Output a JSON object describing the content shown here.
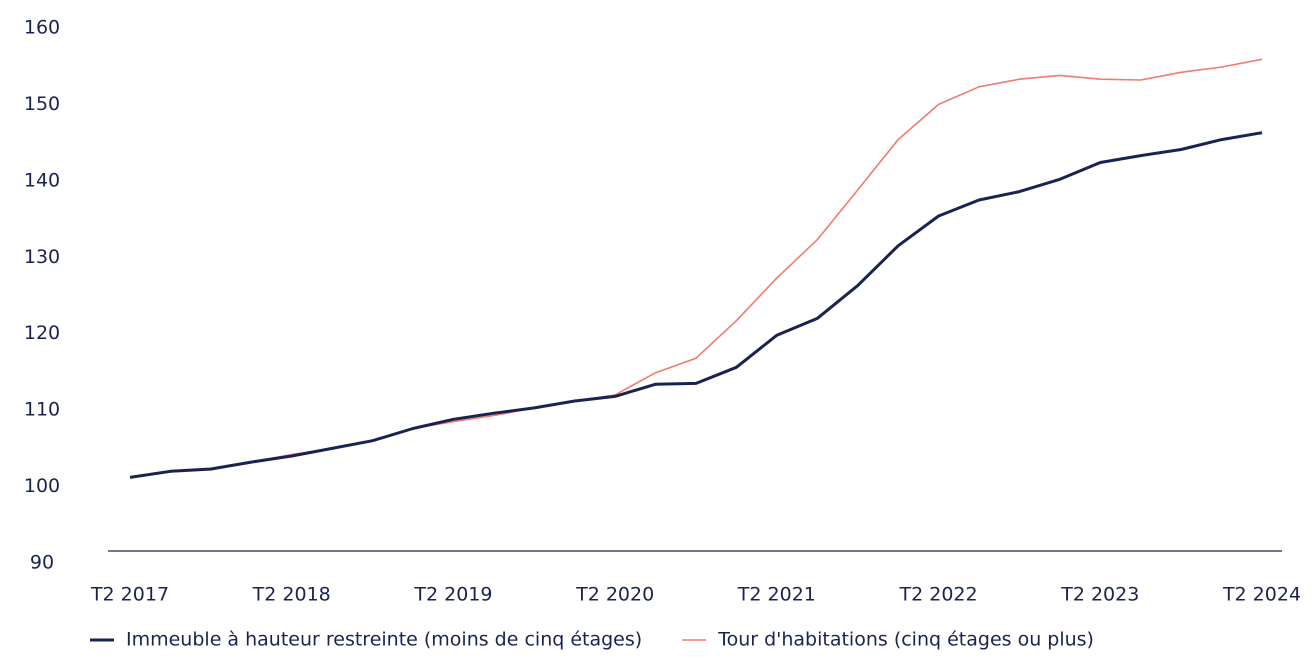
{
  "chart_data": {
    "type": "line",
    "categories": [
      "T2 2017",
      null,
      null,
      null,
      "T2 2018",
      null,
      null,
      null,
      "T2 2019",
      null,
      null,
      null,
      "T2 2020",
      null,
      null,
      null,
      "T2 2021",
      null,
      null,
      null,
      "T2 2022",
      null,
      null,
      null,
      "T2 2023",
      null,
      null,
      null,
      "T2 2024"
    ],
    "series": [
      {
        "name": "Immeuble à hauteur restreinte (moins de cinq étages)",
        "color": "#1a2350",
        "values": [
          101.2,
          102.0,
          102.3,
          103.2,
          104.0,
          105.0,
          106.0,
          107.6,
          108.8,
          109.6,
          110.3,
          111.2,
          111.8,
          113.4,
          113.5,
          115.6,
          119.8,
          122.0,
          126.3,
          131.5,
          135.4,
          137.5,
          138.6,
          140.2,
          142.4,
          143.3,
          144.1,
          145.4,
          146.3
        ]
      },
      {
        "name": "Tour d'habitations (cinq étages ou plus)",
        "color": "#f07b6e",
        "values": [
          101.2,
          101.9,
          102.2,
          103.2,
          104.2,
          105.0,
          106.0,
          107.6,
          108.5,
          109.3,
          110.3,
          111.2,
          112.0,
          114.9,
          116.8,
          121.7,
          127.3,
          132.3,
          138.8,
          145.4,
          150.0,
          152.3,
          153.3,
          153.8,
          153.3,
          153.2,
          154.2,
          154.9,
          155.9
        ]
      }
    ],
    "ylim": [
      90,
      160
    ],
    "yticks": [
      90,
      100,
      110,
      120,
      130,
      140,
      150,
      160
    ],
    "grid": false,
    "legend": "bottom"
  }
}
